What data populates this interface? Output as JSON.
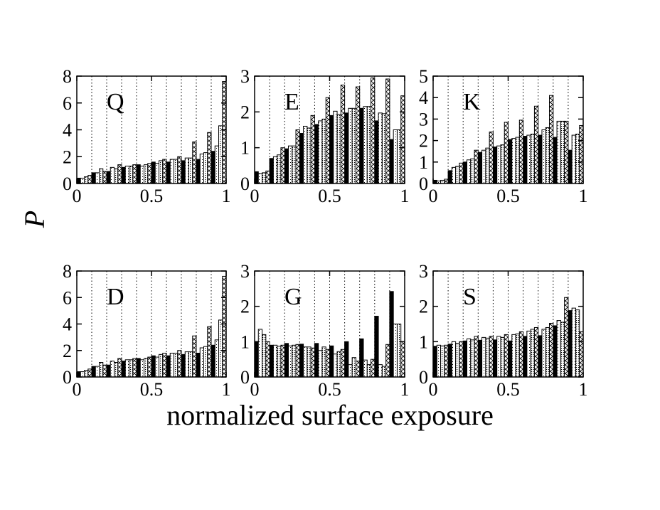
{
  "figure": {
    "ylabel": "P",
    "xlabel": "normalized surface exposure"
  },
  "chart_data": [
    {
      "type": "bar",
      "title": "Q",
      "ylim": [
        0,
        8
      ],
      "xlim": [
        0,
        1
      ],
      "yticks": [
        "0",
        "2",
        "4",
        "6",
        "8"
      ],
      "xticks": [
        "0",
        "0.5",
        "1"
      ],
      "bin_starts": [
        0,
        0.1,
        0.2,
        0.3,
        0.4,
        0.5,
        0.6,
        0.7,
        0.8,
        0.9
      ],
      "series": [
        {
          "name": "solid",
          "fill": "black",
          "values": [
            0.4,
            0.8,
            0.9,
            1.2,
            1.4,
            1.6,
            1.6,
            1.7,
            1.8,
            2.4
          ]
        },
        {
          "name": "light",
          "fill": "dots",
          "values": [
            0.4,
            0.8,
            1.2,
            1.3,
            1.3,
            1.5,
            1.8,
            1.9,
            2.2,
            2.8
          ]
        },
        {
          "name": "dotted",
          "fill": "dense-dots",
          "values": [
            0.5,
            1.1,
            1.1,
            1.3,
            1.4,
            1.7,
            1.8,
            1.9,
            2.3,
            4.3
          ]
        },
        {
          "name": "crosshatch",
          "fill": "crosshatch",
          "values": [
            0.6,
            0.9,
            1.4,
            1.4,
            1.5,
            1.8,
            2.0,
            3.1,
            3.8,
            7.6
          ]
        }
      ]
    },
    {
      "type": "bar",
      "title": "E",
      "ylim": [
        0,
        3
      ],
      "xlim": [
        0,
        1
      ],
      "yticks": [
        "0",
        "1",
        "2",
        "3"
      ],
      "xticks": [
        "0",
        "0.5",
        "1"
      ],
      "bin_starts": [
        0,
        0.1,
        0.2,
        0.3,
        0.4,
        0.5,
        0.6,
        0.7,
        0.8,
        0.9
      ],
      "series": [
        {
          "name": "solid",
          "fill": "black",
          "values": [
            0.33,
            0.7,
            0.97,
            1.4,
            1.65,
            1.9,
            1.97,
            2.1,
            1.75,
            1.23
          ]
        },
        {
          "name": "light",
          "fill": "dots",
          "values": [
            0.28,
            0.75,
            1.05,
            1.6,
            1.75,
            2.02,
            2.1,
            2.15,
            1.97,
            1.5
          ]
        },
        {
          "name": "dotted",
          "fill": "dense-dots",
          "values": [
            0.3,
            0.8,
            1.05,
            1.55,
            1.8,
            1.93,
            2.1,
            2.15,
            1.95,
            1.5
          ]
        },
        {
          "name": "crosshatch",
          "fill": "crosshatch",
          "values": [
            0.35,
            1.0,
            1.5,
            1.9,
            2.4,
            2.75,
            2.7,
            2.95,
            2.92,
            2.45
          ]
        }
      ]
    },
    {
      "type": "bar",
      "title": "K",
      "ylim": [
        0,
        5
      ],
      "xlim": [
        0,
        1
      ],
      "yticks": [
        "0",
        "1",
        "2",
        "3",
        "4",
        "5"
      ],
      "xticks": [
        "0",
        "0.5",
        "1"
      ],
      "bin_starts": [
        0,
        0.1,
        0.2,
        0.3,
        0.4,
        0.5,
        0.6,
        0.7,
        0.8,
        0.9
      ],
      "series": [
        {
          "name": "solid",
          "fill": "black",
          "values": [
            0.15,
            0.6,
            1.0,
            1.45,
            1.7,
            2.05,
            2.2,
            2.25,
            2.15,
            1.55
          ]
        },
        {
          "name": "light",
          "fill": "dots",
          "values": [
            0.12,
            0.75,
            1.1,
            1.55,
            1.75,
            2.1,
            2.25,
            2.5,
            2.9,
            2.25
          ]
        },
        {
          "name": "dotted",
          "fill": "dense-dots",
          "values": [
            0.15,
            0.8,
            1.15,
            1.65,
            1.8,
            2.15,
            2.3,
            2.6,
            2.9,
            2.3
          ]
        },
        {
          "name": "crosshatch",
          "fill": "crosshatch",
          "values": [
            0.2,
            0.95,
            1.55,
            2.4,
            2.85,
            2.95,
            3.6,
            4.1,
            2.9,
            2.7
          ]
        }
      ]
    },
    {
      "type": "bar",
      "title": "D",
      "ylim": [
        0,
        8
      ],
      "xlim": [
        0,
        1
      ],
      "yticks": [
        "0",
        "2",
        "4",
        "6",
        "8"
      ],
      "xticks": [
        "0",
        "0.5",
        "1"
      ],
      "bin_starts": [
        0,
        0.1,
        0.2,
        0.3,
        0.4,
        0.5,
        0.6,
        0.7,
        0.8,
        0.9
      ],
      "series": [
        {
          "name": "solid",
          "fill": "black",
          "values": [
            0.4,
            0.8,
            0.9,
            1.2,
            1.4,
            1.6,
            1.6,
            1.7,
            1.8,
            2.4
          ]
        },
        {
          "name": "light",
          "fill": "dots",
          "values": [
            0.4,
            0.8,
            1.2,
            1.3,
            1.3,
            1.5,
            1.8,
            1.9,
            2.2,
            2.8
          ]
        },
        {
          "name": "dotted",
          "fill": "dense-dots",
          "values": [
            0.5,
            1.1,
            1.1,
            1.3,
            1.4,
            1.7,
            1.8,
            1.9,
            2.3,
            4.3
          ]
        },
        {
          "name": "crosshatch",
          "fill": "crosshatch",
          "values": [
            0.6,
            0.9,
            1.4,
            1.4,
            1.5,
            1.8,
            2.0,
            3.1,
            3.8,
            7.6
          ]
        }
      ]
    },
    {
      "type": "bar",
      "title": "G",
      "ylim": [
        0,
        3
      ],
      "xlim": [
        0,
        1
      ],
      "yticks": [
        "0",
        "1",
        "2",
        "3"
      ],
      "xticks": [
        "0",
        "0.5",
        "1"
      ],
      "bin_starts": [
        0,
        0.1,
        0.2,
        0.3,
        0.4,
        0.5,
        0.6,
        0.7,
        0.8,
        0.9
      ],
      "series": [
        {
          "name": "solid",
          "fill": "black",
          "values": [
            1.0,
            0.9,
            0.95,
            0.93,
            0.95,
            0.88,
            1.0,
            1.08,
            1.72,
            2.42
          ]
        },
        {
          "name": "light",
          "fill": "dots",
          "values": [
            1.35,
            0.9,
            0.88,
            0.85,
            0.75,
            0.65,
            0.35,
            0.48,
            0.35,
            1.5
          ]
        },
        {
          "name": "dotted",
          "fill": "dense-dots",
          "values": [
            1.2,
            0.87,
            0.9,
            0.85,
            0.85,
            0.72,
            0.55,
            0.35,
            0.3,
            1.5
          ]
        },
        {
          "name": "crosshatch",
          "fill": "crosshatch",
          "values": [
            1.0,
            0.9,
            0.92,
            0.82,
            0.78,
            0.78,
            0.45,
            0.5,
            0.92,
            1.0
          ]
        }
      ]
    },
    {
      "type": "bar",
      "title": "S",
      "ylim": [
        0,
        3
      ],
      "xlim": [
        0,
        1
      ],
      "yticks": [
        "0",
        "1",
        "2",
        "3"
      ],
      "xticks": [
        "0",
        "0.5",
        "1"
      ],
      "bin_starts": [
        0,
        0.1,
        0.2,
        0.3,
        0.4,
        0.5,
        0.6,
        0.7,
        0.8,
        0.9
      ],
      "series": [
        {
          "name": "solid",
          "fill": "black",
          "values": [
            0.87,
            0.93,
            1.02,
            1.04,
            1.05,
            1.02,
            1.15,
            1.17,
            1.45,
            1.88
          ]
        },
        {
          "name": "light",
          "fill": "dots",
          "values": [
            0.9,
            1.0,
            1.08,
            1.12,
            1.15,
            1.2,
            1.3,
            1.35,
            1.6,
            1.95
          ]
        },
        {
          "name": "dotted",
          "fill": "dense-dots",
          "values": [
            0.88,
            0.95,
            1.05,
            1.1,
            1.12,
            1.22,
            1.35,
            1.4,
            1.55,
            1.9
          ]
        },
        {
          "name": "crosshatch",
          "fill": "crosshatch",
          "values": [
            0.9,
            1.0,
            1.15,
            1.15,
            1.2,
            1.28,
            1.4,
            1.52,
            2.25,
            1.28
          ]
        }
      ]
    }
  ]
}
